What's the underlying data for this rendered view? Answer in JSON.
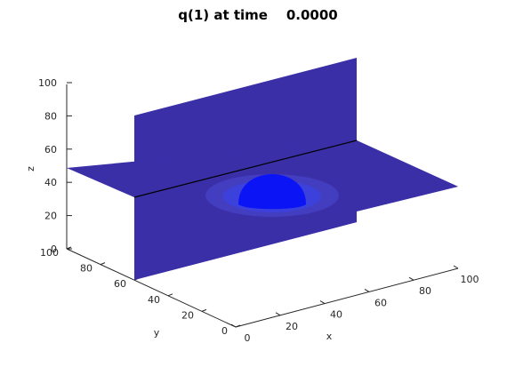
{
  "chart_data": {
    "type": "surface",
    "title": "q(1) at time    0.0000",
    "xlabel": "x",
    "ylabel": "y",
    "zlabel": "z",
    "xlim": [
      0,
      100
    ],
    "ylim": [
      0,
      100
    ],
    "zlim": [
      0,
      100
    ],
    "x_ticks": [
      "0",
      "20",
      "40",
      "60",
      "80",
      "100"
    ],
    "y_ticks": [
      "0",
      "20",
      "40",
      "60",
      "80",
      "100"
    ],
    "z_ticks": [
      "0",
      "20",
      "40",
      "60",
      "80",
      "100"
    ],
    "grid": false,
    "slices": [
      {
        "plane": "z",
        "value": 50
      },
      {
        "plane": "y",
        "value": 50
      }
    ],
    "feature": {
      "shape": "sphere",
      "center": [
        50,
        50,
        50
      ],
      "radius": 20
    },
    "colors": {
      "background_value": "#3b2fa8",
      "sphere_value": "#0a14f5",
      "intersection_line": "#000000"
    }
  }
}
